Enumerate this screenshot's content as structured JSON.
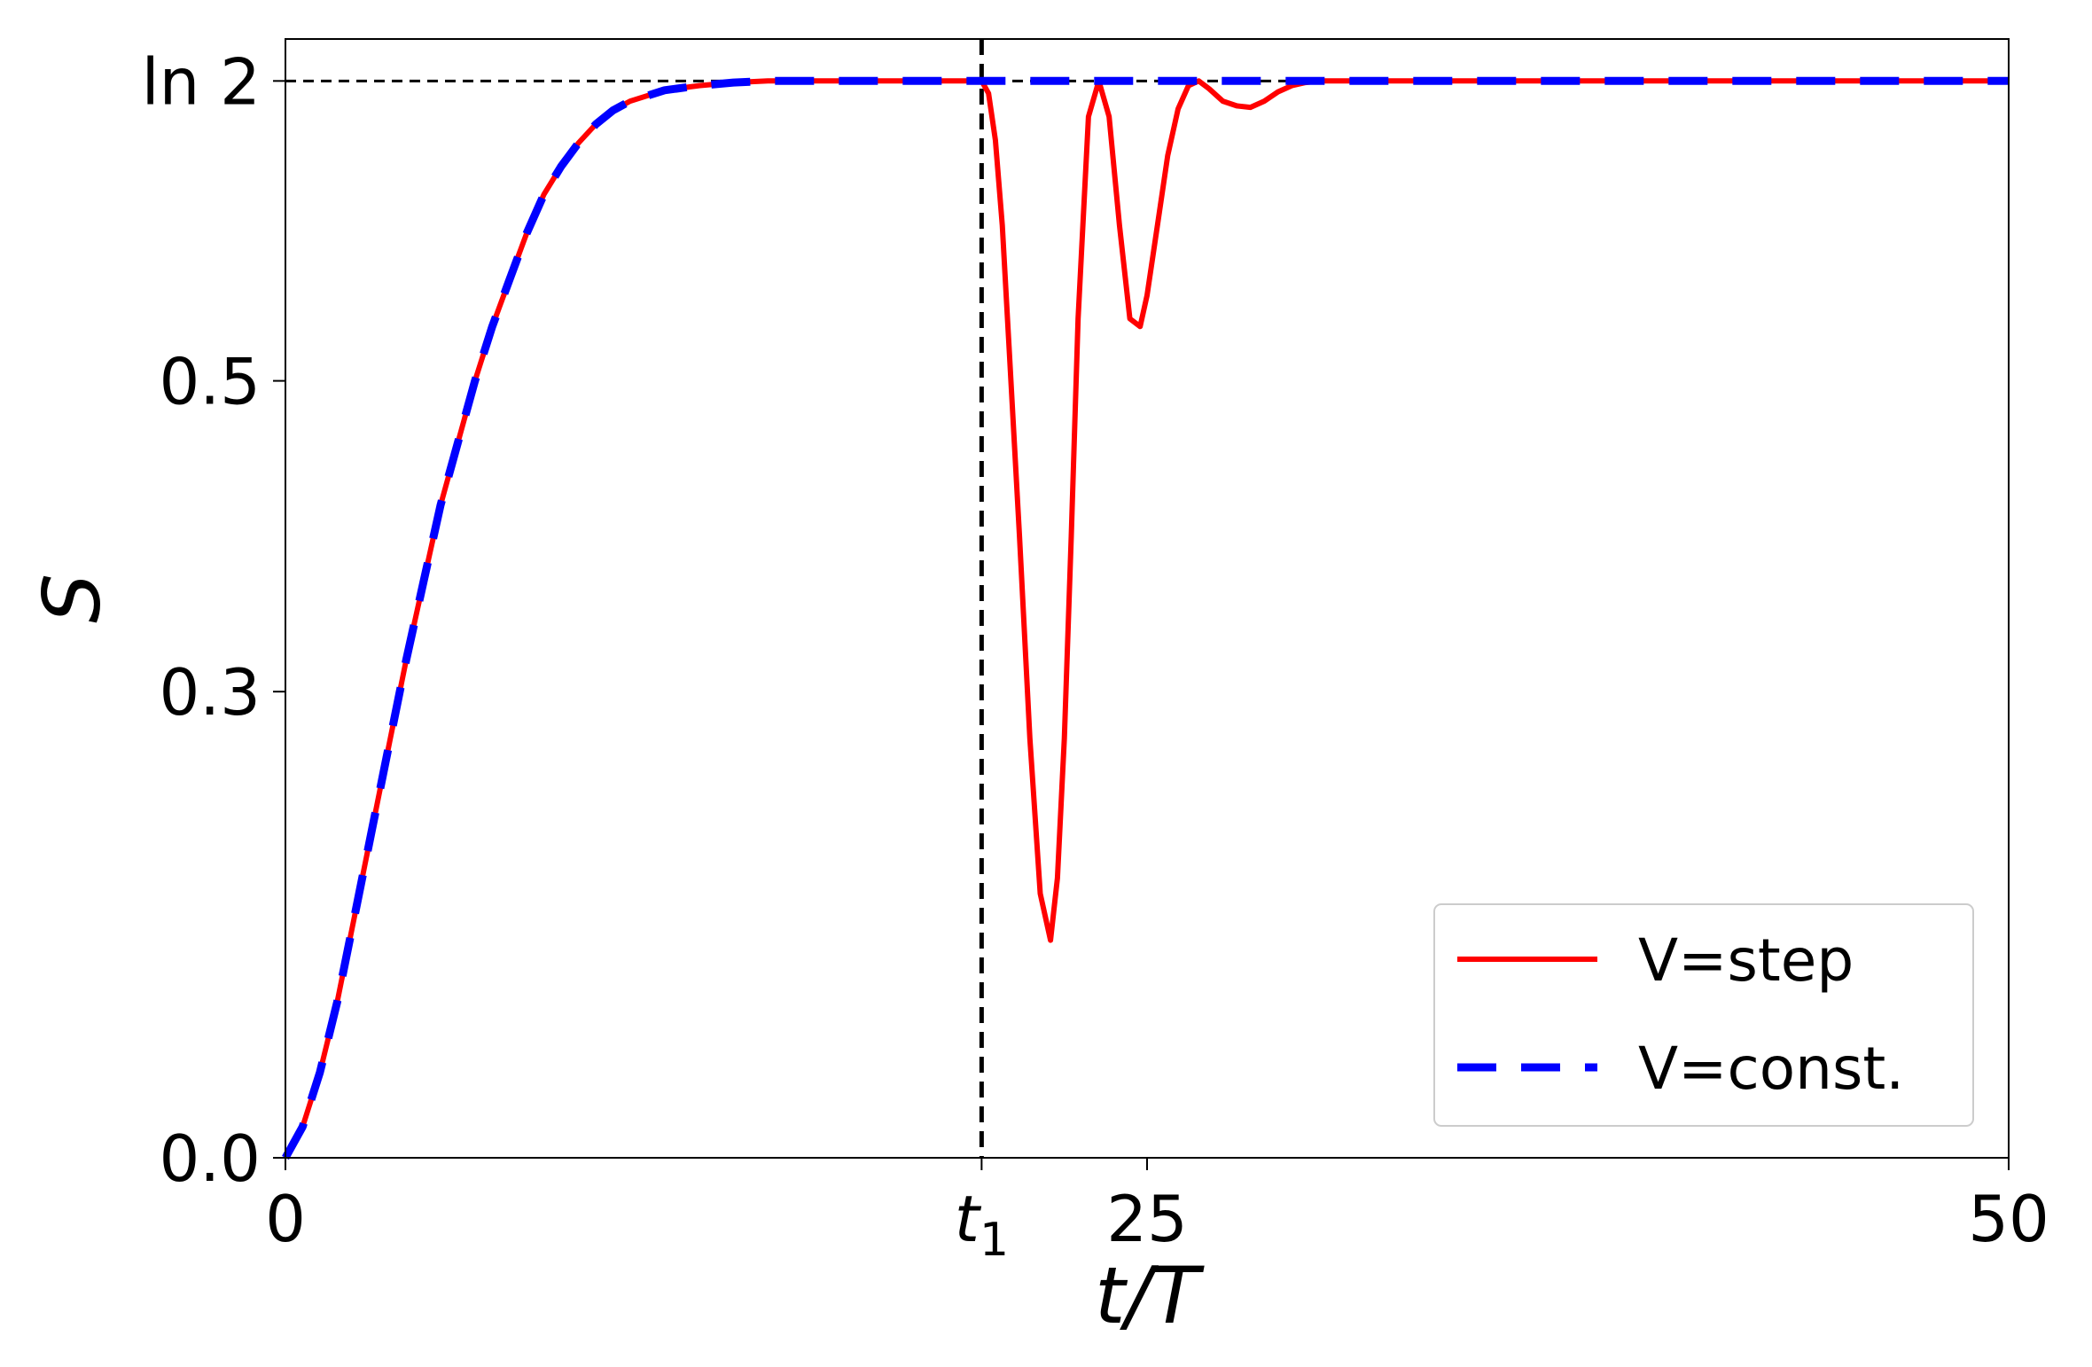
{
  "chart_data": {
    "type": "line",
    "xlabel": "t/T",
    "ylabel": "S",
    "xlim": [
      0,
      50
    ],
    "ylim": [
      0,
      0.72
    ],
    "x_ticks": [
      {
        "value": 0,
        "label": "0"
      },
      {
        "value": 20.2,
        "label": "t",
        "subscript": "1"
      },
      {
        "value": 25,
        "label": "25"
      },
      {
        "value": 50,
        "label": "50"
      }
    ],
    "y_ticks": [
      {
        "value": 0.0,
        "label": "0.0"
      },
      {
        "value": 0.3,
        "label": "0.3"
      },
      {
        "value": 0.5,
        "label": "0.5"
      },
      {
        "value": 0.693,
        "label": "ln 2"
      }
    ],
    "reference_lines": [
      {
        "orientation": "horizontal",
        "value": 0.693,
        "style": "dashed",
        "color": "#000000"
      },
      {
        "orientation": "vertical",
        "value": 20.2,
        "style": "dashed",
        "color": "#000000"
      }
    ],
    "series": [
      {
        "name": "V=step",
        "color": "#ff0000",
        "style": "solid",
        "x": [
          0,
          0.5,
          1,
          1.5,
          2,
          2.5,
          3,
          3.5,
          4,
          4.5,
          5,
          5.5,
          6,
          6.5,
          7,
          7.5,
          8,
          8.5,
          9,
          9.5,
          10,
          11,
          12,
          13,
          14,
          15,
          16,
          17,
          18,
          19,
          20.2,
          20.4,
          20.6,
          20.8,
          21,
          21.3,
          21.6,
          21.9,
          22.2,
          22.4,
          22.6,
          22.8,
          23,
          23.3,
          23.6,
          23.9,
          24.2,
          24.5,
          24.8,
          25,
          25.3,
          25.6,
          25.9,
          26.2,
          26.5,
          26.8,
          27.2,
          27.6,
          28,
          28.4,
          28.8,
          29.2,
          29.6,
          30,
          30.5,
          31,
          31.5,
          32,
          34,
          36,
          38,
          40,
          42,
          44,
          46,
          48,
          50
        ],
        "y": [
          0.0,
          0.02,
          0.055,
          0.1,
          0.155,
          0.21,
          0.265,
          0.32,
          0.37,
          0.42,
          0.46,
          0.5,
          0.535,
          0.565,
          0.595,
          0.62,
          0.638,
          0.653,
          0.665,
          0.674,
          0.68,
          0.687,
          0.69,
          0.692,
          0.693,
          0.693,
          0.693,
          0.693,
          0.693,
          0.693,
          0.693,
          0.685,
          0.655,
          0.6,
          0.52,
          0.4,
          0.27,
          0.17,
          0.14,
          0.18,
          0.27,
          0.4,
          0.54,
          0.67,
          0.693,
          0.67,
          0.6,
          0.54,
          0.535,
          0.555,
          0.6,
          0.645,
          0.675,
          0.69,
          0.693,
          0.688,
          0.68,
          0.677,
          0.676,
          0.68,
          0.686,
          0.69,
          0.692,
          0.693,
          0.693,
          0.693,
          0.693,
          0.693,
          0.693,
          0.693,
          0.693,
          0.693,
          0.693,
          0.693,
          0.693,
          0.693,
          0.693
        ]
      },
      {
        "name": "V=const.",
        "color": "#0000ff",
        "style": "dashed",
        "x": [
          0,
          0.5,
          1,
          1.5,
          2,
          2.5,
          3,
          3.5,
          4,
          4.5,
          5,
          5.5,
          6,
          6.5,
          7,
          7.5,
          8,
          8.5,
          9,
          9.5,
          10,
          11,
          12,
          13,
          14,
          15,
          16,
          17,
          18,
          20,
          25,
          30,
          35,
          40,
          45,
          50
        ],
        "y": [
          0.0,
          0.02,
          0.055,
          0.1,
          0.155,
          0.21,
          0.265,
          0.32,
          0.37,
          0.42,
          0.46,
          0.5,
          0.535,
          0.565,
          0.595,
          0.62,
          0.638,
          0.653,
          0.665,
          0.674,
          0.68,
          0.687,
          0.69,
          0.692,
          0.693,
          0.693,
          0.693,
          0.693,
          0.693,
          0.693,
          0.693,
          0.693,
          0.693,
          0.693,
          0.693,
          0.693
        ]
      }
    ],
    "legend": {
      "position": "lower-right"
    },
    "grid": false
  }
}
